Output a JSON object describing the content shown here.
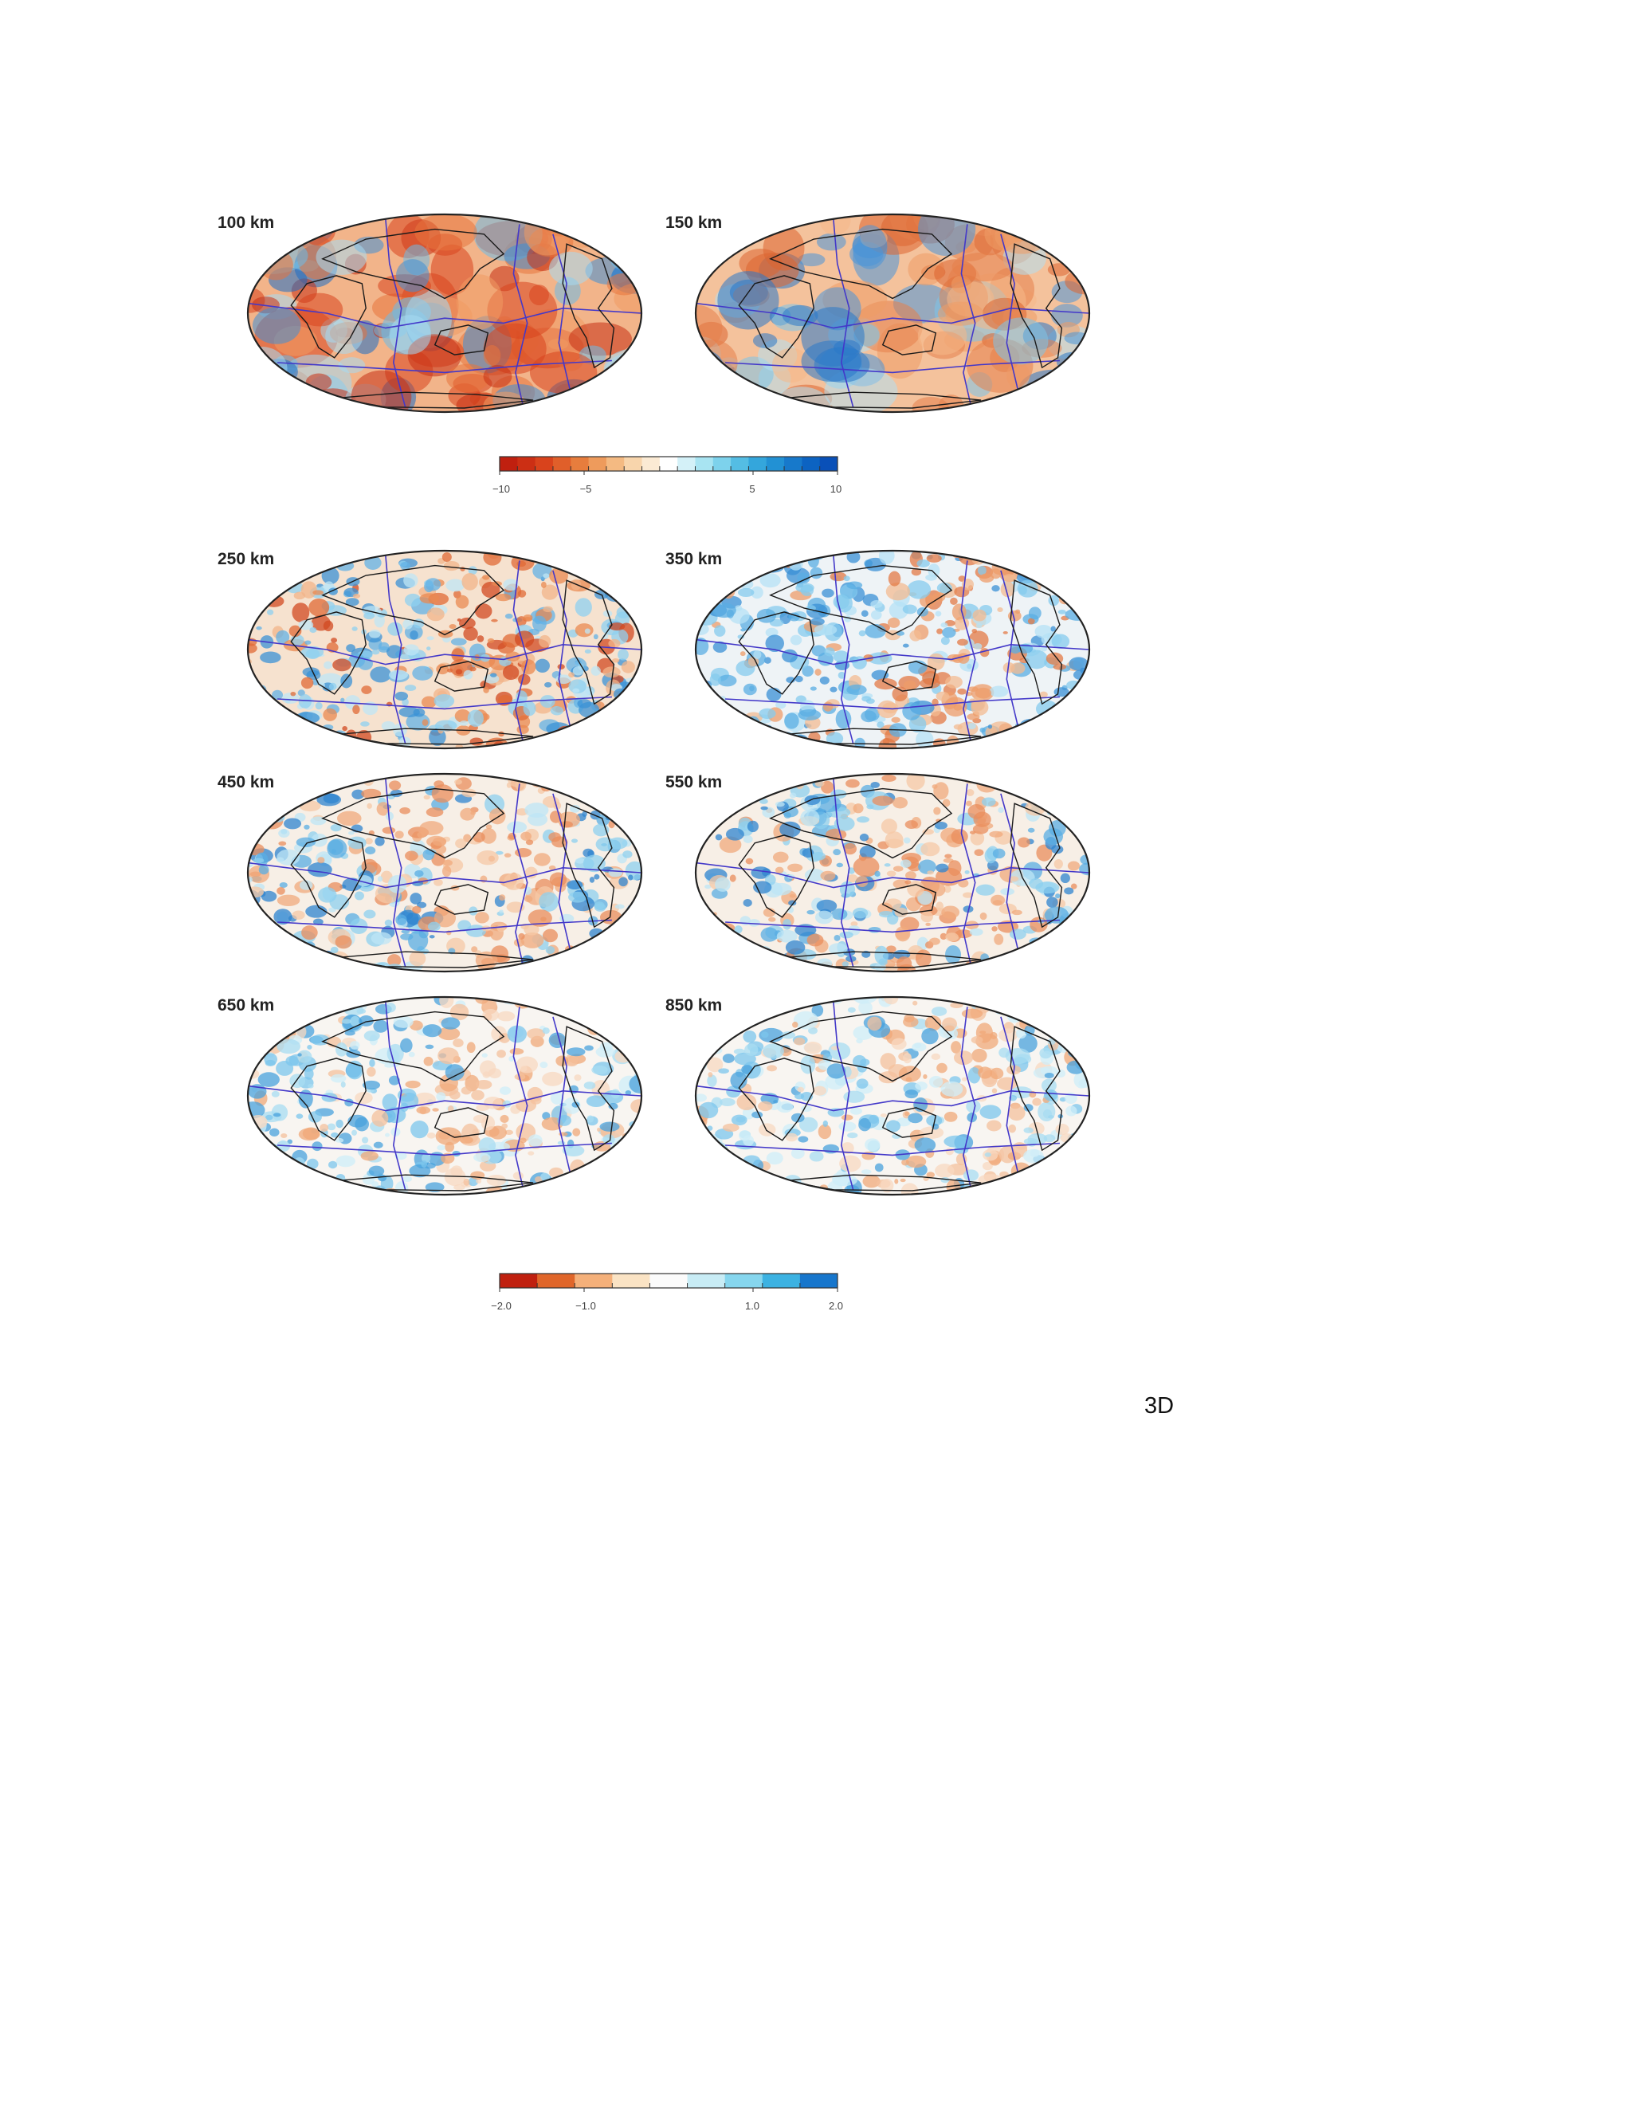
{
  "panels": [
    {
      "label": "100 km",
      "style": "strong"
    },
    {
      "label": "150 km",
      "style": "warm"
    },
    {
      "label": "250 km",
      "style": "speckled"
    },
    {
      "label": "350 km",
      "style": "speckled-cool"
    },
    {
      "label": "450 km",
      "style": "slab"
    },
    {
      "label": "550 km",
      "style": "slab"
    },
    {
      "label": "650 km",
      "style": "pale"
    },
    {
      "label": "850 km",
      "style": "pale"
    }
  ],
  "colorbars": [
    {
      "ticks": [
        "−10",
        "−5",
        "5",
        "10"
      ],
      "tick_values": [
        -10,
        -5,
        5,
        10
      ],
      "range": [
        -10,
        10
      ],
      "colors": [
        "#c0200f",
        "#cc2f14",
        "#d9431c",
        "#e05f2a",
        "#e77d3d",
        "#ee9b5c",
        "#f4ba82",
        "#f8d5ac",
        "#fbead4",
        "#ffffff",
        "#d4f1f8",
        "#a8e4f2",
        "#7dd2ec",
        "#54bde4",
        "#34a6dc",
        "#2291d4",
        "#1779cb",
        "#0c63c2",
        "#0950b8"
      ]
    },
    {
      "ticks": [
        "−2.0",
        "−1.0",
        "1.0",
        "2.0"
      ],
      "tick_values": [
        -2,
        -1,
        1,
        2
      ],
      "range": [
        -2,
        2
      ],
      "colors": [
        "#c0200f",
        "#e0662a",
        "#f4b07a",
        "#fae3c4",
        "#fbfbfb",
        "#c8ecf5",
        "#86d6ee",
        "#3cb2e2",
        "#1776cc"
      ]
    }
  ],
  "page_note": "3D"
}
